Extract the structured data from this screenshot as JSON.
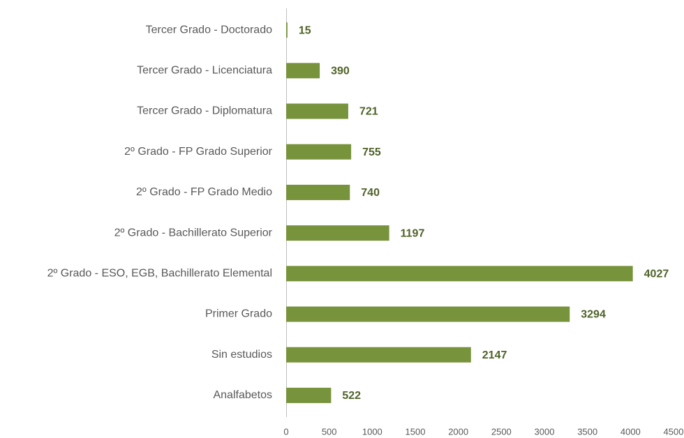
{
  "chart_data": {
    "type": "barh",
    "categories": [
      "Tercer Grado - Doctorado",
      "Tercer Grado - Licenciatura",
      "Tercer Grado - Diplomatura",
      "2º Grado - FP Grado Superior",
      "2º Grado - FP Grado Medio",
      "2º Grado - Bachillerato Superior",
      "2º Grado - ESO, EGB, Bachillerato Elemental",
      "Primer Grado",
      "Sin estudios",
      "Analfabetos"
    ],
    "values": [
      15,
      390,
      721,
      755,
      740,
      1197,
      4027,
      3294,
      2147,
      522
    ],
    "color": "#77933c",
    "label_color": "#4f6228",
    "xlim": [
      0,
      4500
    ],
    "xticks": [
      0,
      500,
      1000,
      1500,
      2000,
      2500,
      3000,
      3500,
      4000,
      4500
    ],
    "grid": false
  }
}
